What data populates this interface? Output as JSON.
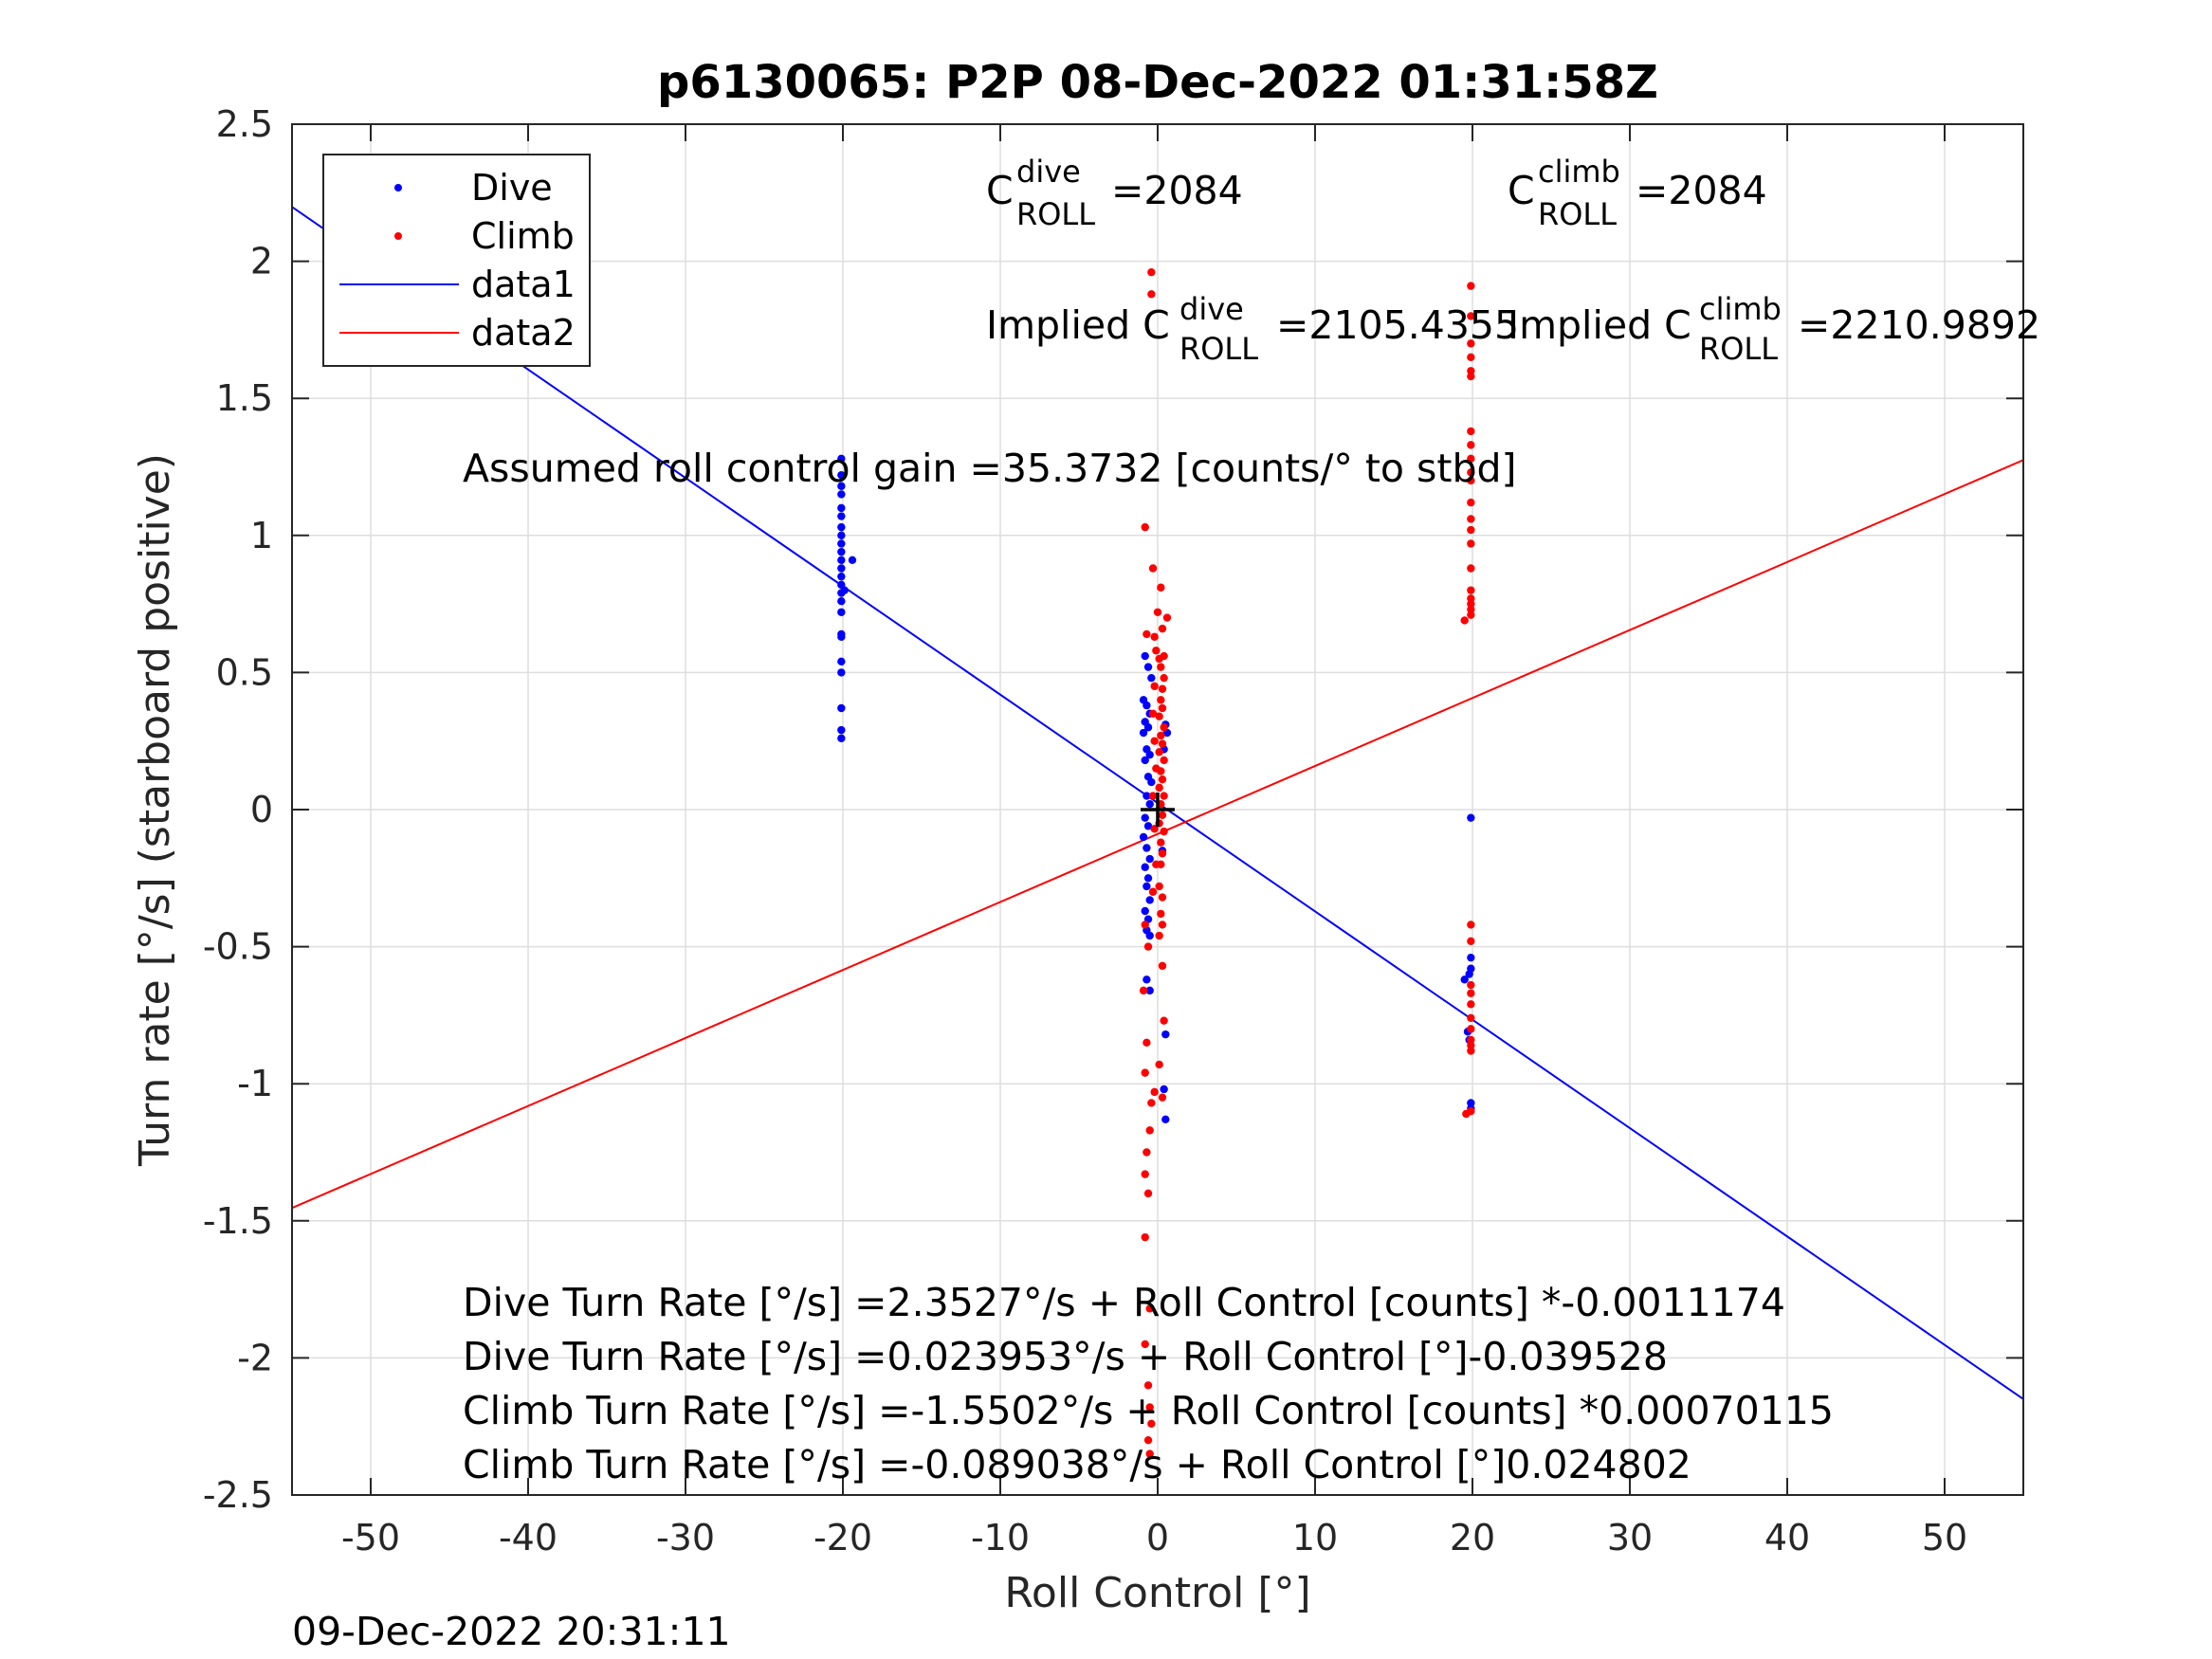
{
  "chart_data": {
    "type": "scatter",
    "title": "p6130065: P2P 08-Dec-2022 01:31:58Z",
    "xlabel": "Roll Control [°]",
    "ylabel": "Turn rate [°/s] (starboard positive)",
    "xlim": [
      -55,
      55
    ],
    "ylim": [
      -2.5,
      2.5
    ],
    "xticks": [
      "-50",
      "-40",
      "-30",
      "-20",
      "-10",
      "0",
      "10",
      "20",
      "30",
      "40",
      "50"
    ],
    "yticks": [
      "2.5",
      "2",
      "1.5",
      "1",
      "0.5",
      "0",
      "-0.5",
      "-1",
      "-1.5",
      "-2",
      "-2.5"
    ],
    "grid": true,
    "legend_position": "top-left",
    "legend": [
      "Dive",
      "Climb",
      "data1",
      "data2"
    ],
    "colors": {
      "dive": "#0000ff",
      "climb": "#ff0000",
      "marker": "#000000"
    },
    "series": [
      {
        "name": "Dive",
        "kind": "points",
        "color": "#0000ff",
        "points": [
          [
            -20.1,
            1.28
          ],
          [
            -20.1,
            1.22
          ],
          [
            -20.1,
            1.18
          ],
          [
            -20.1,
            1.15
          ],
          [
            -20.1,
            1.1
          ],
          [
            -20.1,
            1.07
          ],
          [
            -20.1,
            1.03
          ],
          [
            -20.1,
            1.0
          ],
          [
            -20.1,
            0.97
          ],
          [
            -20.1,
            0.94
          ],
          [
            -20.1,
            0.91
          ],
          [
            -20.1,
            0.88
          ],
          [
            -20.1,
            0.85
          ],
          [
            -20.1,
            0.82
          ],
          [
            -20.1,
            0.79
          ],
          [
            -20.1,
            0.76
          ],
          [
            -20.1,
            0.72
          ],
          [
            -20.1,
            0.64
          ],
          [
            -20.1,
            0.63
          ],
          [
            -20.1,
            0.54
          ],
          [
            -20.1,
            0.5
          ],
          [
            -20.1,
            0.37
          ],
          [
            -20.1,
            0.29
          ],
          [
            -20.1,
            0.26
          ],
          [
            -19.4,
            0.91
          ],
          [
            -19.9,
            0.8
          ],
          [
            -0.8,
            0.56
          ],
          [
            -0.6,
            0.52
          ],
          [
            -0.4,
            0.48
          ],
          [
            -0.9,
            0.4
          ],
          [
            -0.7,
            0.38
          ],
          [
            -0.5,
            0.35
          ],
          [
            -0.8,
            0.32
          ],
          [
            -0.6,
            0.3
          ],
          [
            -0.9,
            0.28
          ],
          [
            -0.7,
            0.22
          ],
          [
            -0.5,
            0.2
          ],
          [
            -0.8,
            0.18
          ],
          [
            -0.6,
            0.12
          ],
          [
            -0.4,
            0.1
          ],
          [
            -0.7,
            0.05
          ],
          [
            -0.5,
            0.02
          ],
          [
            -0.8,
            -0.03
          ],
          [
            -0.6,
            -0.06
          ],
          [
            -0.9,
            -0.1
          ],
          [
            -0.7,
            -0.14
          ],
          [
            -0.5,
            -0.18
          ],
          [
            -0.8,
            -0.21
          ],
          [
            -0.6,
            -0.25
          ],
          [
            -0.7,
            -0.28
          ],
          [
            -0.5,
            -0.33
          ],
          [
            -0.8,
            -0.37
          ],
          [
            -0.6,
            -0.4
          ],
          [
            -0.7,
            -0.44
          ],
          [
            -0.5,
            -0.46
          ],
          [
            -0.7,
            -0.62
          ],
          [
            -0.5,
            -0.66
          ],
          [
            0.5,
            0.31
          ],
          [
            0.6,
            0.28
          ],
          [
            0.4,
            0.22
          ],
          [
            0.3,
            -0.15
          ],
          [
            0.5,
            -0.82
          ],
          [
            0.4,
            -1.02
          ],
          [
            0.5,
            -1.13
          ],
          [
            19.5,
            -0.62
          ],
          [
            19.8,
            -0.6
          ],
          [
            19.9,
            -0.58
          ],
          [
            19.9,
            -0.54
          ],
          [
            19.9,
            -0.03
          ],
          [
            19.7,
            -0.81
          ],
          [
            19.8,
            -0.84
          ],
          [
            19.9,
            -1.07
          ],
          [
            19.9,
            -1.09
          ]
        ]
      },
      {
        "name": "Climb",
        "kind": "points",
        "color": "#ff0000",
        "points": [
          [
            -0.4,
            1.96
          ],
          [
            -0.4,
            1.88
          ],
          [
            -0.8,
            1.03
          ],
          [
            -0.3,
            0.88
          ],
          [
            0.2,
            0.81
          ],
          [
            0.0,
            0.72
          ],
          [
            0.6,
            0.7
          ],
          [
            -0.7,
            0.64
          ],
          [
            -0.2,
            0.63
          ],
          [
            0.3,
            0.66
          ],
          [
            0.4,
            0.56
          ],
          [
            0.1,
            0.55
          ],
          [
            0.2,
            0.52
          ],
          [
            0.4,
            0.48
          ],
          [
            0.3,
            0.44
          ],
          [
            0.2,
            0.4
          ],
          [
            0.3,
            0.37
          ],
          [
            0.1,
            0.34
          ],
          [
            0.4,
            0.3
          ],
          [
            0.2,
            0.27
          ],
          [
            0.3,
            0.24
          ],
          [
            0.1,
            0.21
          ],
          [
            0.4,
            0.18
          ],
          [
            0.2,
            0.14
          ],
          [
            0.3,
            0.11
          ],
          [
            0.1,
            0.08
          ],
          [
            0.4,
            0.05
          ],
          [
            0.2,
            0.02
          ],
          [
            0.3,
            -0.02
          ],
          [
            0.1,
            -0.05
          ],
          [
            0.4,
            -0.08
          ],
          [
            0.2,
            -0.12
          ],
          [
            0.3,
            -0.16
          ],
          [
            0.2,
            -0.2
          ],
          [
            0.1,
            -0.28
          ],
          [
            0.3,
            -0.32
          ],
          [
            0.2,
            -0.38
          ],
          [
            0.3,
            -0.42
          ],
          [
            0.1,
            -0.46
          ],
          [
            -0.1,
            0.58
          ],
          [
            -0.2,
            0.45
          ],
          [
            -0.3,
            0.35
          ],
          [
            -0.2,
            0.25
          ],
          [
            -0.1,
            0.15
          ],
          [
            -0.3,
            0.05
          ],
          [
            -0.2,
            -0.07
          ],
          [
            -0.1,
            -0.2
          ],
          [
            -0.3,
            -0.3
          ],
          [
            -0.8,
            -0.42
          ],
          [
            -0.6,
            -0.5
          ],
          [
            -0.9,
            -0.66
          ],
          [
            0.3,
            -0.57
          ],
          [
            0.4,
            -0.77
          ],
          [
            0.1,
            -0.93
          ],
          [
            -0.7,
            -0.85
          ],
          [
            -0.8,
            -0.96
          ],
          [
            -0.4,
            -1.07
          ],
          [
            -0.2,
            -1.03
          ],
          [
            0.3,
            -1.05
          ],
          [
            -0.5,
            -1.17
          ],
          [
            -0.7,
            -1.25
          ],
          [
            -0.8,
            -1.33
          ],
          [
            -0.6,
            -1.4
          ],
          [
            -0.8,
            -1.56
          ],
          [
            -0.5,
            -1.82
          ],
          [
            -0.8,
            -1.95
          ],
          [
            -0.6,
            -2.1
          ],
          [
            -0.5,
            -2.18
          ],
          [
            -0.4,
            -2.24
          ],
          [
            -0.6,
            -2.3
          ],
          [
            -0.5,
            -2.35
          ],
          [
            19.9,
            1.91
          ],
          [
            19.9,
            1.8
          ],
          [
            19.9,
            1.7
          ],
          [
            19.9,
            1.65
          ],
          [
            19.9,
            1.6
          ],
          [
            19.9,
            1.58
          ],
          [
            19.9,
            1.38
          ],
          [
            19.9,
            1.33
          ],
          [
            19.9,
            1.28
          ],
          [
            19.9,
            1.23
          ],
          [
            19.9,
            1.2
          ],
          [
            19.9,
            1.12
          ],
          [
            19.9,
            1.06
          ],
          [
            19.9,
            1.02
          ],
          [
            19.9,
            0.97
          ],
          [
            19.9,
            0.88
          ],
          [
            19.9,
            0.8
          ],
          [
            19.9,
            0.77
          ],
          [
            19.9,
            0.75
          ],
          [
            19.9,
            0.73
          ],
          [
            19.9,
            0.71
          ],
          [
            19.5,
            0.69
          ],
          [
            19.9,
            -0.42
          ],
          [
            19.9,
            -0.48
          ],
          [
            19.9,
            -0.64
          ],
          [
            19.9,
            -0.67
          ],
          [
            19.9,
            -0.71
          ],
          [
            19.9,
            -0.76
          ],
          [
            19.9,
            -0.8
          ],
          [
            19.9,
            -0.84
          ],
          [
            19.9,
            -0.86
          ],
          [
            19.9,
            -0.88
          ],
          [
            19.6,
            -1.11
          ],
          [
            19.9,
            -1.1
          ]
        ]
      },
      {
        "name": "data1",
        "kind": "line",
        "color": "#0000ff",
        "x": [
          -55,
          55
        ],
        "y": [
          2.198,
          -2.15
        ]
      },
      {
        "name": "data2",
        "kind": "line",
        "color": "#ff0000",
        "x": [
          -55,
          55
        ],
        "y": [
          -1.453,
          1.275
        ]
      }
    ],
    "center_marker": {
      "x": 0,
      "y": 0,
      "color": "#000000"
    },
    "annotations": {
      "c_dive": {
        "base": "C",
        "sup": "dive",
        "sub": "ROLL",
        "value": "=2084"
      },
      "c_climb": {
        "base": "C",
        "sup": "climb",
        "sub": "ROLL",
        "value": "=2084"
      },
      "implied_dive": {
        "base": "Implied C",
        "sup": "dive",
        "sub": "ROLL",
        "value": "=2105.4355"
      },
      "implied_climb": {
        "base": "Implied C",
        "sup": "climb",
        "sub": "ROLL",
        "value": "=2210.9892"
      },
      "gain": "Assumed roll control gain =35.3732 [counts/° to stbd]",
      "fit1": "Dive Turn Rate [°/s] =2.3527°/s + Roll Control [counts] *-0.0011174",
      "fit2": "Dive Turn Rate [°/s] =0.023953°/s + Roll Control [°]-0.039528",
      "fit3": "Climb Turn Rate [°/s] =-1.5502°/s + Roll Control [counts] *0.00070115",
      "fit4": "Climb Turn Rate [°/s] =-0.089038°/s + Roll Control [°]0.024802"
    },
    "timestamp": "09-Dec-2022 20:31:11"
  }
}
